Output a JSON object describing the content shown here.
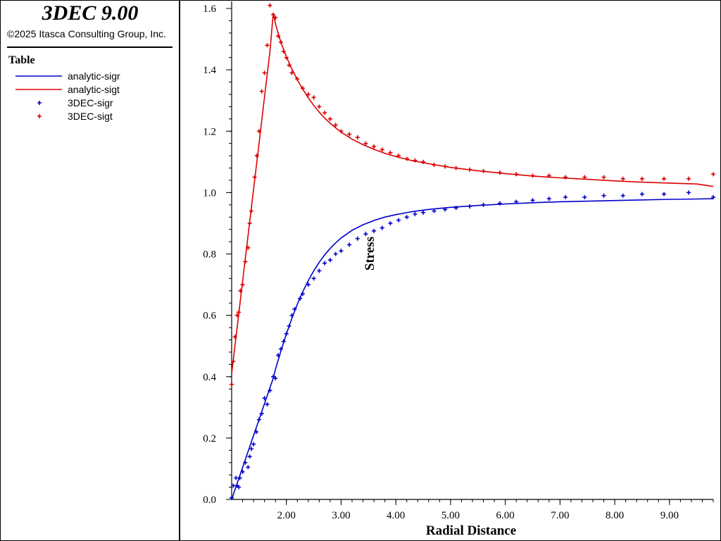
{
  "app": {
    "title": "3DEC 9.00",
    "copyright": "©2025 Itasca Consulting Group, Inc."
  },
  "legend": {
    "heading": "Table",
    "entries": [
      {
        "label": "analytic-sigr",
        "style": "line",
        "color": "#0000cc"
      },
      {
        "label": "analytic-sigt",
        "style": "line",
        "color": "#dd0000"
      },
      {
        "label": "3DEC-sigr",
        "style": "marker",
        "color": "#0000cc"
      },
      {
        "label": "3DEC-sigt",
        "style": "marker",
        "color": "#dd0000"
      }
    ]
  },
  "chart_data": {
    "type": "line",
    "xlabel": "Radial Distance",
    "ylabel": "Stress",
    "xlim": [
      1.0,
      9.8
    ],
    "ylim": [
      0.0,
      1.6
    ],
    "xticks": [
      "2.00",
      "3.00",
      "4.00",
      "5.00",
      "6.00",
      "7.00",
      "8.00",
      "9.00"
    ],
    "yticks": [
      "0.0",
      "0.2",
      "0.4",
      "0.6",
      "0.8",
      "1.0",
      "1.2",
      "1.4",
      "1.6"
    ],
    "grid": false,
    "series": [
      {
        "name": "analytic-sigr",
        "kind": "line",
        "color": "#0000cc",
        "x": [
          1.0,
          1.1,
          1.2,
          1.3,
          1.4,
          1.5,
          1.6,
          1.7,
          1.76,
          1.8,
          1.9,
          2.0,
          2.1,
          2.2,
          2.3,
          2.4,
          2.5,
          2.6,
          2.7,
          2.8,
          2.9,
          3.0,
          3.2,
          3.4,
          3.6,
          3.8,
          4.0,
          4.3,
          4.6,
          5.0,
          5.5,
          6.0,
          6.5,
          7.0,
          7.5,
          8.0,
          8.5,
          9.0,
          9.5,
          9.8
        ],
        "y": [
          0.0,
          0.052,
          0.104,
          0.156,
          0.208,
          0.26,
          0.312,
          0.364,
          0.395,
          0.424,
          0.484,
          0.539,
          0.59,
          0.636,
          0.677,
          0.713,
          0.745,
          0.773,
          0.797,
          0.818,
          0.836,
          0.852,
          0.877,
          0.895,
          0.909,
          0.92,
          0.928,
          0.938,
          0.945,
          0.952,
          0.958,
          0.963,
          0.967,
          0.97,
          0.972,
          0.974,
          0.976,
          0.978,
          0.979,
          0.98
        ]
      },
      {
        "name": "analytic-sigt",
        "kind": "line",
        "color": "#dd0000",
        "x": [
          1.0,
          1.1,
          1.2,
          1.3,
          1.4,
          1.5,
          1.6,
          1.7,
          1.76,
          1.8,
          1.9,
          2.0,
          2.1,
          2.2,
          2.3,
          2.4,
          2.5,
          2.6,
          2.7,
          2.8,
          2.9,
          3.0,
          3.2,
          3.4,
          3.6,
          3.8,
          4.0,
          4.3,
          4.6,
          5.0,
          5.5,
          6.0,
          6.5,
          7.0,
          7.5,
          8.0,
          8.5,
          9.0,
          9.5,
          9.8
        ],
        "y": [
          0.41,
          0.56,
          0.71,
          0.86,
          1.01,
          1.16,
          1.31,
          1.46,
          1.585,
          1.55,
          1.489,
          1.443,
          1.403,
          1.368,
          1.337,
          1.309,
          1.284,
          1.262,
          1.243,
          1.226,
          1.211,
          1.197,
          1.174,
          1.156,
          1.141,
          1.128,
          1.117,
          1.104,
          1.094,
          1.082,
          1.071,
          1.062,
          1.054,
          1.048,
          1.043,
          1.038,
          1.034,
          1.031,
          1.028,
          1.02
        ]
      },
      {
        "name": "3DEC-sigr",
        "kind": "marker",
        "color": "#0000cc",
        "x": [
          1.0,
          1.03,
          1.08,
          1.1,
          1.13,
          1.15,
          1.2,
          1.25,
          1.3,
          1.33,
          1.36,
          1.4,
          1.45,
          1.5,
          1.55,
          1.6,
          1.65,
          1.7,
          1.76,
          1.8,
          1.85,
          1.9,
          1.95,
          2.0,
          2.05,
          2.1,
          2.15,
          2.25,
          2.3,
          2.4,
          2.5,
          2.6,
          2.7,
          2.8,
          2.9,
          3.0,
          3.15,
          3.3,
          3.45,
          3.6,
          3.75,
          3.9,
          4.05,
          4.2,
          4.35,
          4.5,
          4.7,
          4.9,
          5.1,
          5.35,
          5.6,
          5.9,
          6.2,
          6.5,
          6.8,
          7.1,
          7.45,
          7.8,
          8.15,
          8.5,
          8.9,
          9.35,
          9.8
        ],
        "y": [
          0.005,
          0.045,
          0.07,
          0.045,
          0.04,
          0.07,
          0.09,
          0.12,
          0.105,
          0.14,
          0.165,
          0.18,
          0.22,
          0.26,
          0.28,
          0.33,
          0.31,
          0.355,
          0.4,
          0.395,
          0.47,
          0.49,
          0.515,
          0.54,
          0.565,
          0.6,
          0.62,
          0.655,
          0.67,
          0.7,
          0.72,
          0.745,
          0.77,
          0.78,
          0.8,
          0.81,
          0.83,
          0.85,
          0.865,
          0.875,
          0.885,
          0.9,
          0.91,
          0.92,
          0.93,
          0.935,
          0.94,
          0.945,
          0.95,
          0.955,
          0.96,
          0.965,
          0.97,
          0.975,
          0.98,
          0.985,
          0.985,
          0.99,
          0.99,
          0.995,
          0.995,
          1.0,
          0.985
        ]
      },
      {
        "name": "3DEC-sigt",
        "kind": "marker",
        "color": "#dd0000",
        "x": [
          1.0,
          1.03,
          1.06,
          1.1,
          1.13,
          1.16,
          1.2,
          1.25,
          1.3,
          1.33,
          1.36,
          1.42,
          1.46,
          1.5,
          1.55,
          1.6,
          1.65,
          1.7,
          1.76,
          1.8,
          1.85,
          1.9,
          1.95,
          2.0,
          2.05,
          2.1,
          2.2,
          2.3,
          2.4,
          2.5,
          2.6,
          2.7,
          2.8,
          2.9,
          3.0,
          3.15,
          3.3,
          3.45,
          3.6,
          3.75,
          3.9,
          4.05,
          4.2,
          4.35,
          4.5,
          4.7,
          4.9,
          5.1,
          5.35,
          5.6,
          5.9,
          6.2,
          6.5,
          6.8,
          7.1,
          7.45,
          7.8,
          8.15,
          8.5,
          8.9,
          9.35,
          9.8
        ],
        "y": [
          0.375,
          0.45,
          0.53,
          0.6,
          0.61,
          0.68,
          0.7,
          0.775,
          0.82,
          0.9,
          0.94,
          1.05,
          1.12,
          1.2,
          1.33,
          1.39,
          1.48,
          1.61,
          1.58,
          1.57,
          1.51,
          1.49,
          1.46,
          1.44,
          1.415,
          1.39,
          1.37,
          1.34,
          1.32,
          1.31,
          1.28,
          1.26,
          1.24,
          1.22,
          1.2,
          1.19,
          1.18,
          1.16,
          1.15,
          1.14,
          1.13,
          1.12,
          1.11,
          1.105,
          1.1,
          1.09,
          1.085,
          1.08,
          1.075,
          1.07,
          1.065,
          1.06,
          1.055,
          1.055,
          1.05,
          1.05,
          1.05,
          1.045,
          1.045,
          1.045,
          1.045,
          1.06
        ]
      }
    ]
  }
}
